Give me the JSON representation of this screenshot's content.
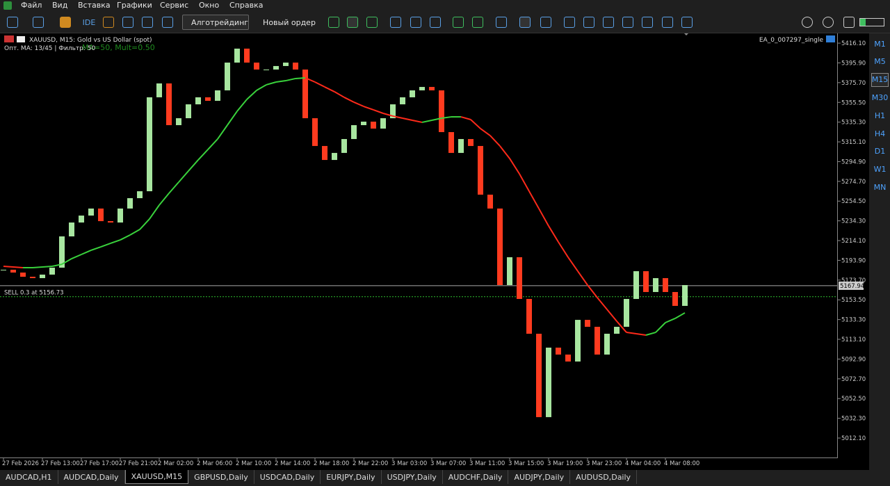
{
  "menu": [
    "Файл",
    "Вид",
    "Вставка",
    "Графики",
    "Сервис",
    "Окно",
    "Справка"
  ],
  "toolbar": {
    "ide": "IDE",
    "algo": "Алготрейдинг",
    "order": "Новый ордер"
  },
  "chart_data": {
    "type": "candlestick",
    "symbol_info": "XAUUSD, M15:  Gold vs US Dollar (spot)",
    "indicator_info": "Опт. MA: 13/45 | Фильтр: 50",
    "indicator_params": "MA=50, Mult=0.50",
    "ea_name": "EA_0_007297_single",
    "categories": [
      "27 Feb 2026",
      null,
      null,
      null,
      "27 Feb 13:00",
      null,
      null,
      null,
      "27 Feb 17:00",
      null,
      null,
      null,
      "27 Feb 21:00",
      null,
      null,
      null,
      "2 Mar 02:00",
      null,
      null,
      null,
      "2 Mar 06:00",
      null,
      null,
      null,
      "2 Mar 10:00",
      null,
      null,
      null,
      "2 Mar 14:00",
      null,
      null,
      null,
      "2 Mar 18:00",
      null,
      null,
      null,
      "2 Mar 22:00",
      null,
      null,
      null,
      "3 Mar 03:00",
      null,
      null,
      null,
      "3 Mar 07:00",
      null,
      null,
      null,
      "3 Mar 11:00",
      null,
      null,
      null,
      "3 Mar 15:00",
      null,
      null,
      null,
      "3 Mar 19:00",
      null,
      null,
      null,
      "3 Mar 23:00",
      null,
      null,
      null,
      "4 Mar 04:00",
      null,
      null,
      null,
      "4 Mar 08:00",
      null,
      null
    ],
    "close": [
      5184.3,
      5181.4,
      5177.1,
      5175.7,
      5179.3,
      5186.4,
      5218.4,
      5232.6,
      5239.7,
      5246.9,
      5234.0,
      5232.6,
      5246.9,
      5257.5,
      5264.6,
      5360.7,
      5374.9,
      5332.2,
      5339.3,
      5353.5,
      5360.7,
      5357.1,
      5367.8,
      5396.2,
      5410.5,
      5396.2,
      5389.1,
      5389.1,
      5392.7,
      5396.2,
      5389.1,
      5339.3,
      5310.9,
      5296.6,
      5303.8,
      5318.0,
      5332.2,
      5335.8,
      5328.7,
      5339.3,
      5353.5,
      5360.7,
      5367.8,
      5371.3,
      5367.8,
      5325.1,
      5303.8,
      5318.0,
      5310.9,
      5261.1,
      5246.9,
      5168.6,
      5197.1,
      5154.4,
      5118.8,
      5033.5,
      5104.6,
      5097.5,
      5090.4,
      5133.0,
      5125.9,
      5097.5,
      5118.8,
      5125.9,
      5154.4,
      5182.8,
      5161.5,
      5175.7,
      5161.5,
      5147.3,
      5168.6
    ],
    "ma": [
      5187.8,
      5187.1,
      5186.4,
      5186.4,
      5187.1,
      5187.8,
      5189.9,
      5195.6,
      5199.9,
      5204.2,
      5207.7,
      5211.3,
      5214.8,
      5219.8,
      5225.5,
      5236.2,
      5250.4,
      5262.5,
      5273.9,
      5285.3,
      5296.6,
      5307.3,
      5318.0,
      5332.2,
      5346.4,
      5358.5,
      5367.8,
      5373.5,
      5376.3,
      5377.7,
      5379.9,
      5380.6,
      5376.3,
      5371.3,
      5366.4,
      5360.7,
      5355.7,
      5351.4,
      5347.9,
      5344.3,
      5341.5,
      5339.3,
      5337.2,
      5335.1,
      5337.2,
      5339.3,
      5340.7,
      5340.7,
      5337.9,
      5328.7,
      5321.5,
      5310.9,
      5298.1,
      5282.4,
      5264.6,
      5246.9,
      5229.1,
      5212.7,
      5197.1,
      5182.8,
      5168.6,
      5155.8,
      5143.7,
      5131.6,
      5120.2,
      5118.8,
      5117.4,
      5120.2,
      5130.2,
      5134.5,
      5140.2
    ],
    "up_color": "#a8e6a0",
    "down_color": "#ff3b1f",
    "ma_up_color": "#39d23c",
    "ma_down_color": "#ff2a1a",
    "ylim": [
      4992.2,
      5426.1
    ],
    "yticks": [
      {
        "value": 5416.1,
        "label": "5416.10"
      },
      {
        "value": 5395.9,
        "label": "5395.90"
      },
      {
        "value": 5375.7,
        "label": "5375.70"
      },
      {
        "value": 5355.5,
        "label": "5355.50"
      },
      {
        "value": 5335.3,
        "label": "5335.30"
      },
      {
        "value": 5315.1,
        "label": "5315.10"
      },
      {
        "value": 5294.9,
        "label": "5294.90"
      },
      {
        "value": 5274.7,
        "label": "5274.70"
      },
      {
        "value": 5254.5,
        "label": "5254.50"
      },
      {
        "value": 5234.3,
        "label": "5234.30"
      },
      {
        "value": 5214.1,
        "label": "5214.10"
      },
      {
        "value": 5193.9,
        "label": "5193.90"
      },
      {
        "value": 5173.7,
        "label": "5173.70"
      },
      {
        "value": 5153.5,
        "label": "5153.50"
      },
      {
        "value": 5133.3,
        "label": "5133.30"
      },
      {
        "value": 5113.1,
        "label": "5113.10"
      },
      {
        "value": 5092.9,
        "label": "5092.90"
      },
      {
        "value": 5072.7,
        "label": "5072.70"
      },
      {
        "value": 5052.5,
        "label": "5052.50"
      },
      {
        "value": 5032.3,
        "label": "5032.30"
      },
      {
        "value": 5012.1,
        "label": "5012.10"
      }
    ],
    "price_line": 5167.94,
    "sell_line": {
      "value": 5156.73,
      "label": "SELL 0.3 at 5156.73"
    }
  },
  "timeframes": [
    "M1",
    "M5",
    "M15",
    "M30",
    "H1",
    "H4",
    "D1",
    "W1",
    "MN"
  ],
  "active_timeframe": 2,
  "tabs": [
    "AUDCAD,H1",
    "AUDCAD,Daily",
    "XAUUSD,M15",
    "GBPUSD,Daily",
    "USDCAD,Daily",
    "EURJPY,Daily",
    "USDJPY,Daily",
    "AUDCHF,Daily",
    "AUDJPY,Daily",
    "AUDUSD,Daily"
  ],
  "active_tab": 2
}
